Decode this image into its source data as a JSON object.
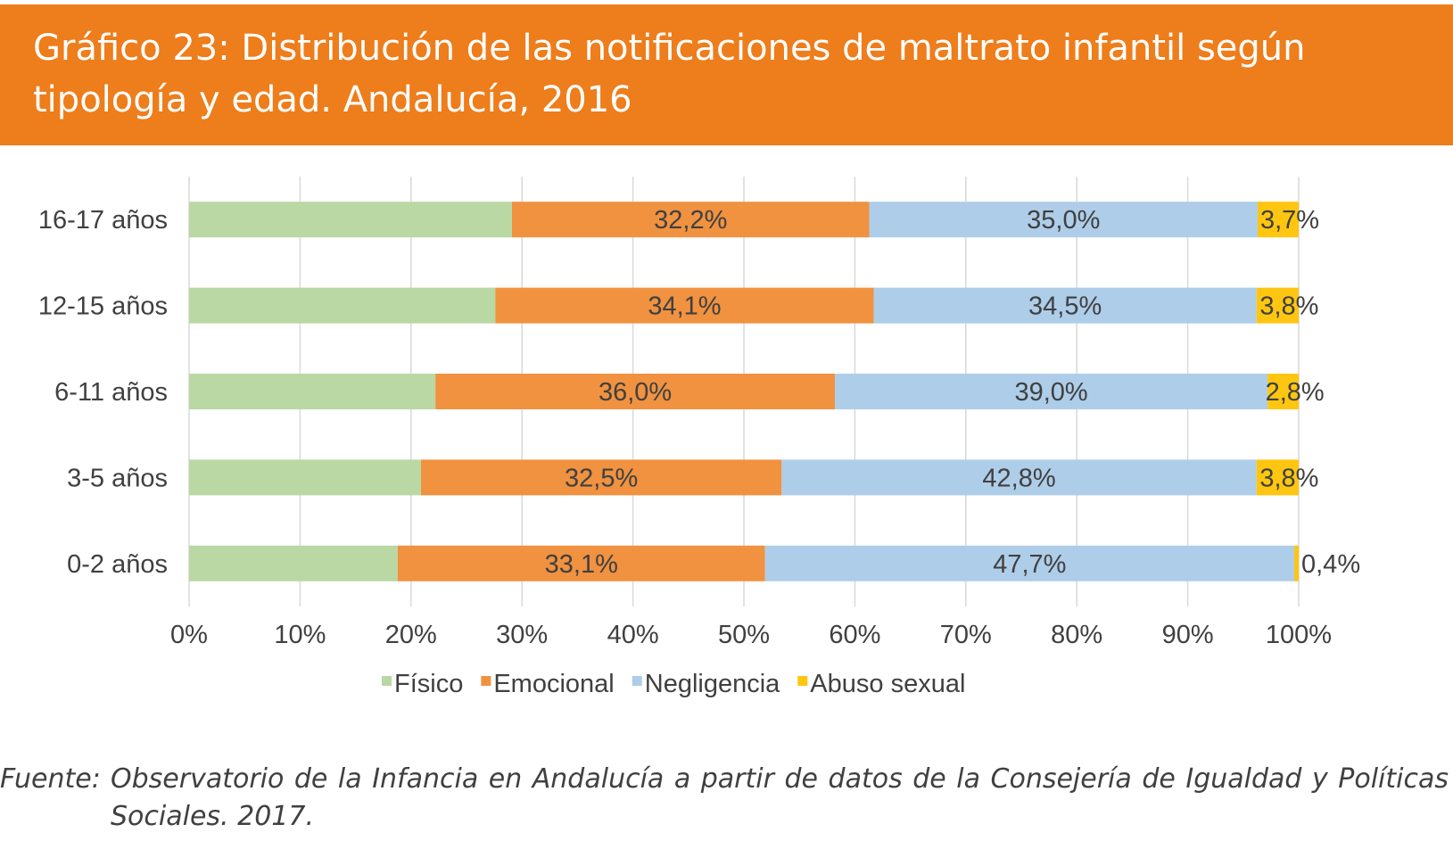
{
  "header": {
    "title": "Gráfico 23: Distribución de las notificaciones de maltrato infantil según tipología y edad. Andalucía, 2016"
  },
  "colors": {
    "header_bg": "#ee7d1b",
    "Físico": "#b9d8a3",
    "Emocional": "#f09240",
    "Negligencia": "#aecde9",
    "Abuso sexual": "#fec611"
  },
  "chart_data": {
    "type": "bar",
    "orientation": "horizontal",
    "stacked": "percent",
    "categories": [
      "16-17 años",
      "12-15 años",
      "6-11 años",
      "3-5 años",
      "0-2 años"
    ],
    "series": [
      {
        "name": "Físico",
        "values": [
          29.1,
          27.6,
          22.2,
          20.9,
          18.8
        ],
        "labels": [
          "",
          "",
          "",
          "",
          ""
        ]
      },
      {
        "name": "Emocional",
        "values": [
          32.2,
          34.1,
          36.0,
          32.5,
          33.1
        ],
        "labels": [
          "32,2%",
          "34,1%",
          "36,0%",
          "32,5%",
          "33,1%"
        ]
      },
      {
        "name": "Negligencia",
        "values": [
          35.0,
          34.5,
          39.0,
          42.8,
          47.7
        ],
        "labels": [
          "35,0%",
          "34,5%",
          "39,0%",
          "42,8%",
          "47,7%"
        ]
      },
      {
        "name": "Abuso sexual",
        "values": [
          3.7,
          3.8,
          2.8,
          3.8,
          0.4
        ],
        "labels": [
          "3,7%",
          "3,8%",
          "2,8%",
          "3,8%",
          "0,4%"
        ]
      }
    ],
    "xlim": [
      0,
      100
    ],
    "xticks": [
      "0%",
      "10%",
      "20%",
      "30%",
      "40%",
      "50%",
      "60%",
      "70%",
      "80%",
      "90%",
      "100%"
    ],
    "grid": true,
    "legend_position": "bottom"
  },
  "source": {
    "label": "Fuente:",
    "text": "Observatorio de la Infancia en Andalucía a partir de datos de la Consejería de Igualdad y Políticas Sociales. 2017."
  }
}
